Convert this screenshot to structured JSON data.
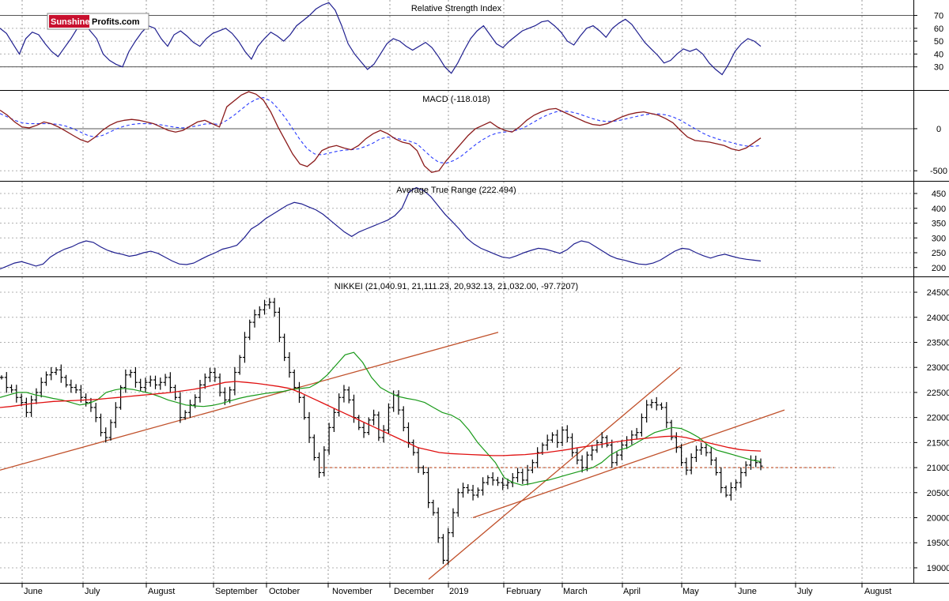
{
  "logo": {
    "part1": "Sunshine",
    "part2": "Profits.com"
  },
  "colors": {
    "sunshine_red": "#c8102e",
    "rsi_line": "#1f1f8f",
    "macd_line": "#8b1a1a",
    "signal_line": "#2a3cff",
    "atr_line": "#1f1f8f",
    "ma_short": "#1a9a1a",
    "ma_long": "#e01010",
    "trendline": "#c0502a",
    "support": "#c0502a",
    "bars": "#000000"
  },
  "chart_data": [
    {
      "type": "line",
      "title": "Relative Strength Index",
      "yticks": [
        30,
        40,
        50,
        60,
        70
      ],
      "ylim": [
        12,
        82
      ],
      "reference_lines": [
        30,
        70
      ],
      "series": [
        {
          "values": [
            60,
            56,
            48,
            40,
            52,
            57,
            55,
            48,
            42,
            38,
            45,
            52,
            60,
            64,
            58,
            52,
            40,
            35,
            32,
            30,
            42,
            50,
            57,
            62,
            60,
            52,
            46,
            55,
            58,
            54,
            49,
            46,
            52,
            56,
            58,
            60,
            56,
            50,
            42,
            36,
            46,
            52,
            57,
            54,
            50,
            55,
            62,
            66,
            70,
            75,
            78,
            80,
            74,
            62,
            48,
            40,
            34,
            28,
            32,
            40,
            48,
            52,
            50,
            46,
            43,
            46,
            49,
            45,
            38,
            30,
            25,
            33,
            43,
            52,
            58,
            62,
            55,
            48,
            45,
            50,
            54,
            58,
            60,
            62,
            65,
            66,
            62,
            57,
            50,
            47,
            54,
            60,
            62,
            58,
            53,
            60,
            64,
            67,
            63,
            56,
            49,
            44,
            39,
            33,
            35,
            40,
            44,
            42,
            44,
            40,
            33,
            28,
            24,
            32,
            42,
            48,
            52,
            50,
            46
          ]
        }
      ]
    },
    {
      "type": "line",
      "title": "MACD (-118.018)",
      "yticks": [
        0,
        -500
      ],
      "ylim": [
        -620,
        450
      ],
      "series": [
        {
          "values": [
            220,
            160,
            80,
            20,
            10,
            40,
            80,
            60,
            20,
            -30,
            -80,
            -130,
            -160,
            -100,
            -20,
            40,
            80,
            100,
            110,
            100,
            80,
            60,
            20,
            -20,
            -40,
            -20,
            30,
            80,
            100,
            60,
            20,
            260,
            330,
            400,
            440,
            410,
            340,
            200,
            20,
            -140,
            -300,
            -420,
            -450,
            -380,
            -260,
            -220,
            -200,
            -230,
            -250,
            -200,
            -120,
            -60,
            -20,
            -60,
            -120,
            -160,
            -180,
            -260,
            -440,
            -520,
            -500,
            -380,
            -280,
            -180,
            -80,
            0,
            40,
            80,
            20,
            -20,
            -40,
            20,
            100,
            160,
            200,
            230,
            240,
            200,
            160,
            120,
            80,
            50,
            40,
            60,
            100,
            140,
            170,
            190,
            200,
            180,
            160,
            120,
            70,
            -20,
            -100,
            -140,
            -150,
            -160,
            -180,
            -200,
            -240,
            -260,
            -230,
            -170,
            -110
          ]
        },
        {
          "values": [
            180,
            140,
            100,
            70,
            60,
            60,
            60,
            60,
            50,
            30,
            0,
            -40,
            -80,
            -100,
            -80,
            -40,
            0,
            30,
            50,
            60,
            60,
            55,
            45,
            30,
            15,
            10,
            20,
            35,
            55,
            60,
            50,
            100,
            160,
            230,
            300,
            350,
            370,
            330,
            240,
            130,
            0,
            -130,
            -240,
            -300,
            -310,
            -290,
            -270,
            -255,
            -250,
            -240,
            -210,
            -170,
            -120,
            -100,
            -110,
            -130,
            -150,
            -180,
            -260,
            -340,
            -400,
            -410,
            -380,
            -330,
            -260,
            -190,
            -130,
            -80,
            -50,
            -40,
            -30,
            -10,
            30,
            80,
            130,
            170,
            200,
            210,
            200,
            180,
            150,
            120,
            95,
            85,
            90,
            105,
            125,
            145,
            165,
            175,
            175,
            165,
            140,
            100,
            50,
            0,
            -50,
            -90,
            -120,
            -145,
            -165,
            -190,
            -205,
            -210,
            -200
          ]
        }
      ]
    },
    {
      "type": "line",
      "title": "Average True Range (222.494)",
      "yticks": [
        200,
        250,
        300,
        350,
        400,
        450
      ],
      "ylim": [
        170,
        490
      ],
      "series": [
        {
          "values": [
            195,
            205,
            215,
            220,
            213,
            205,
            212,
            235,
            250,
            262,
            270,
            282,
            290,
            285,
            270,
            258,
            250,
            245,
            238,
            242,
            250,
            255,
            248,
            235,
            222,
            212,
            210,
            215,
            228,
            240,
            250,
            262,
            268,
            275,
            300,
            330,
            345,
            365,
            380,
            395,
            410,
            420,
            415,
            405,
            395,
            380,
            360,
            340,
            320,
            305,
            320,
            330,
            340,
            350,
            360,
            375,
            400,
            455,
            470,
            460,
            440,
            410,
            380,
            355,
            330,
            300,
            280,
            265,
            255,
            245,
            235,
            232,
            240,
            250,
            258,
            265,
            262,
            255,
            248,
            260,
            280,
            290,
            285,
            270,
            255,
            240,
            230,
            225,
            218,
            212,
            210,
            215,
            225,
            240,
            255,
            265,
            262,
            250,
            240,
            232,
            240,
            245,
            238,
            232,
            228,
            225,
            222
          ]
        }
      ]
    },
    {
      "type": "bar",
      "title": "NIKKEI (21,040.91, 21,111.23, 20,932.13, 21,032.00, -97.7207)",
      "yticks": [
        19000,
        19500,
        20000,
        20500,
        21000,
        21500,
        22000,
        22500,
        23000,
        23500,
        24000,
        24500
      ],
      "ylim": [
        18700,
        24800
      ],
      "xlabels": [
        "June",
        "July",
        "August",
        "September",
        "October",
        "November",
        "December",
        "2019",
        "February",
        "March",
        "April",
        "May",
        "June",
        "July",
        "August"
      ],
      "support_level": 21000,
      "trendlines": [
        {
          "from": [
            "May 2018",
            20950
          ],
          "to": [
            "Feb 2019",
            23700
          ]
        },
        {
          "from": [
            "Dec 2018",
            18770
          ],
          "to": [
            "Apr 2019",
            23000
          ]
        },
        {
          "from": [
            "Jan 2019",
            20000
          ],
          "to": [
            "Jun 2019",
            22150
          ]
        }
      ],
      "series": [
        {
          "name": "close",
          "values": [
            22800,
            22600,
            22550,
            22400,
            22300,
            22100,
            22350,
            22500,
            22700,
            22850,
            22900,
            22950,
            22800,
            22650,
            22600,
            22550,
            22400,
            22300,
            22200,
            22000,
            21700,
            21600,
            21900,
            22200,
            22600,
            22850,
            22900,
            22700,
            22600,
            22700,
            22750,
            22650,
            22700,
            22800,
            22600,
            22400,
            22000,
            22100,
            22250,
            22400,
            22650,
            22800,
            22900,
            22800,
            22500,
            22350,
            22550,
            22900,
            23200,
            23600,
            23900,
            24050,
            24150,
            24250,
            24300,
            24100,
            23600,
            23200,
            22900,
            22600,
            22400,
            22000,
            21600,
            21200,
            20900,
            21350,
            21800,
            22100,
            22400,
            22550,
            22350,
            22000,
            21800,
            21700,
            21950,
            22050,
            21600,
            21750,
            22200,
            22450,
            22150,
            21800,
            21500,
            21300,
            21000,
            20900,
            20300,
            20100,
            19600,
            19150,
            19700,
            20100,
            20500,
            20600,
            20550,
            20450,
            20550,
            20700,
            20800,
            20750,
            20700,
            20650,
            20700,
            20800,
            20900,
            20750,
            20950,
            21100,
            21300,
            21450,
            21550,
            21650,
            21500,
            21750,
            21600,
            21300,
            21150,
            21000,
            21250,
            21350,
            21500,
            21600,
            21450,
            21100,
            21250,
            21450,
            21550,
            21650,
            21700,
            22000,
            22250,
            22300,
            22250,
            22200,
            21900,
            21600,
            21400,
            21100,
            20950,
            21200,
            21350,
            21400,
            21300,
            21150,
            20900,
            20600,
            20450,
            20600,
            20700,
            20900,
            21050,
            21150,
            21100,
            21030
          ]
        },
        {
          "name": "ma_short",
          "values": [
            22400,
            22450,
            22500,
            22500,
            22450,
            22420,
            22380,
            22350,
            22300,
            22250,
            22280,
            22350,
            22500,
            22550,
            22580,
            22560,
            22520,
            22480,
            22420,
            22350,
            22300,
            22250,
            22230,
            22220,
            22240,
            22280,
            22330,
            22380,
            22420,
            22450,
            22480,
            22500,
            22520,
            22560,
            22580,
            22600,
            22700,
            22850,
            23050,
            23250,
            23300,
            23100,
            22800,
            22600,
            22500,
            22420,
            22380,
            22350,
            22300,
            22200,
            22100,
            22050,
            21950,
            21750,
            21500,
            21300,
            21100,
            20800,
            20700,
            20650,
            20680,
            20720,
            20750,
            20800,
            20850,
            20900,
            20950,
            21000,
            21100,
            21250,
            21350,
            21400,
            21500,
            21600,
            21700,
            21750,
            21800,
            21780,
            21700,
            21600,
            21450,
            21350,
            21300,
            21250,
            21200,
            21150,
            21120
          ]
        },
        {
          "name": "ma_long",
          "values": [
            22200,
            22220,
            22250,
            22280,
            22300,
            22320,
            22330,
            22340,
            22350,
            22360,
            22380,
            22400,
            22420,
            22440,
            22460,
            22480,
            22500,
            22530,
            22560,
            22600,
            22650,
            22700,
            22720,
            22700,
            22680,
            22650,
            22620,
            22580,
            22500,
            22400,
            22300,
            22200,
            22100,
            22000,
            21900,
            21800,
            21700,
            21600,
            21500,
            21400,
            21350,
            21300,
            21280,
            21270,
            21260,
            21250,
            21240,
            21240,
            21250,
            21260,
            21280,
            21300,
            21330,
            21360,
            21400,
            21430,
            21460,
            21500,
            21530,
            21560,
            21580,
            21600,
            21620,
            21630,
            21600,
            21550,
            21500,
            21450,
            21400,
            21360,
            21340,
            21330
          ]
        }
      ]
    }
  ]
}
